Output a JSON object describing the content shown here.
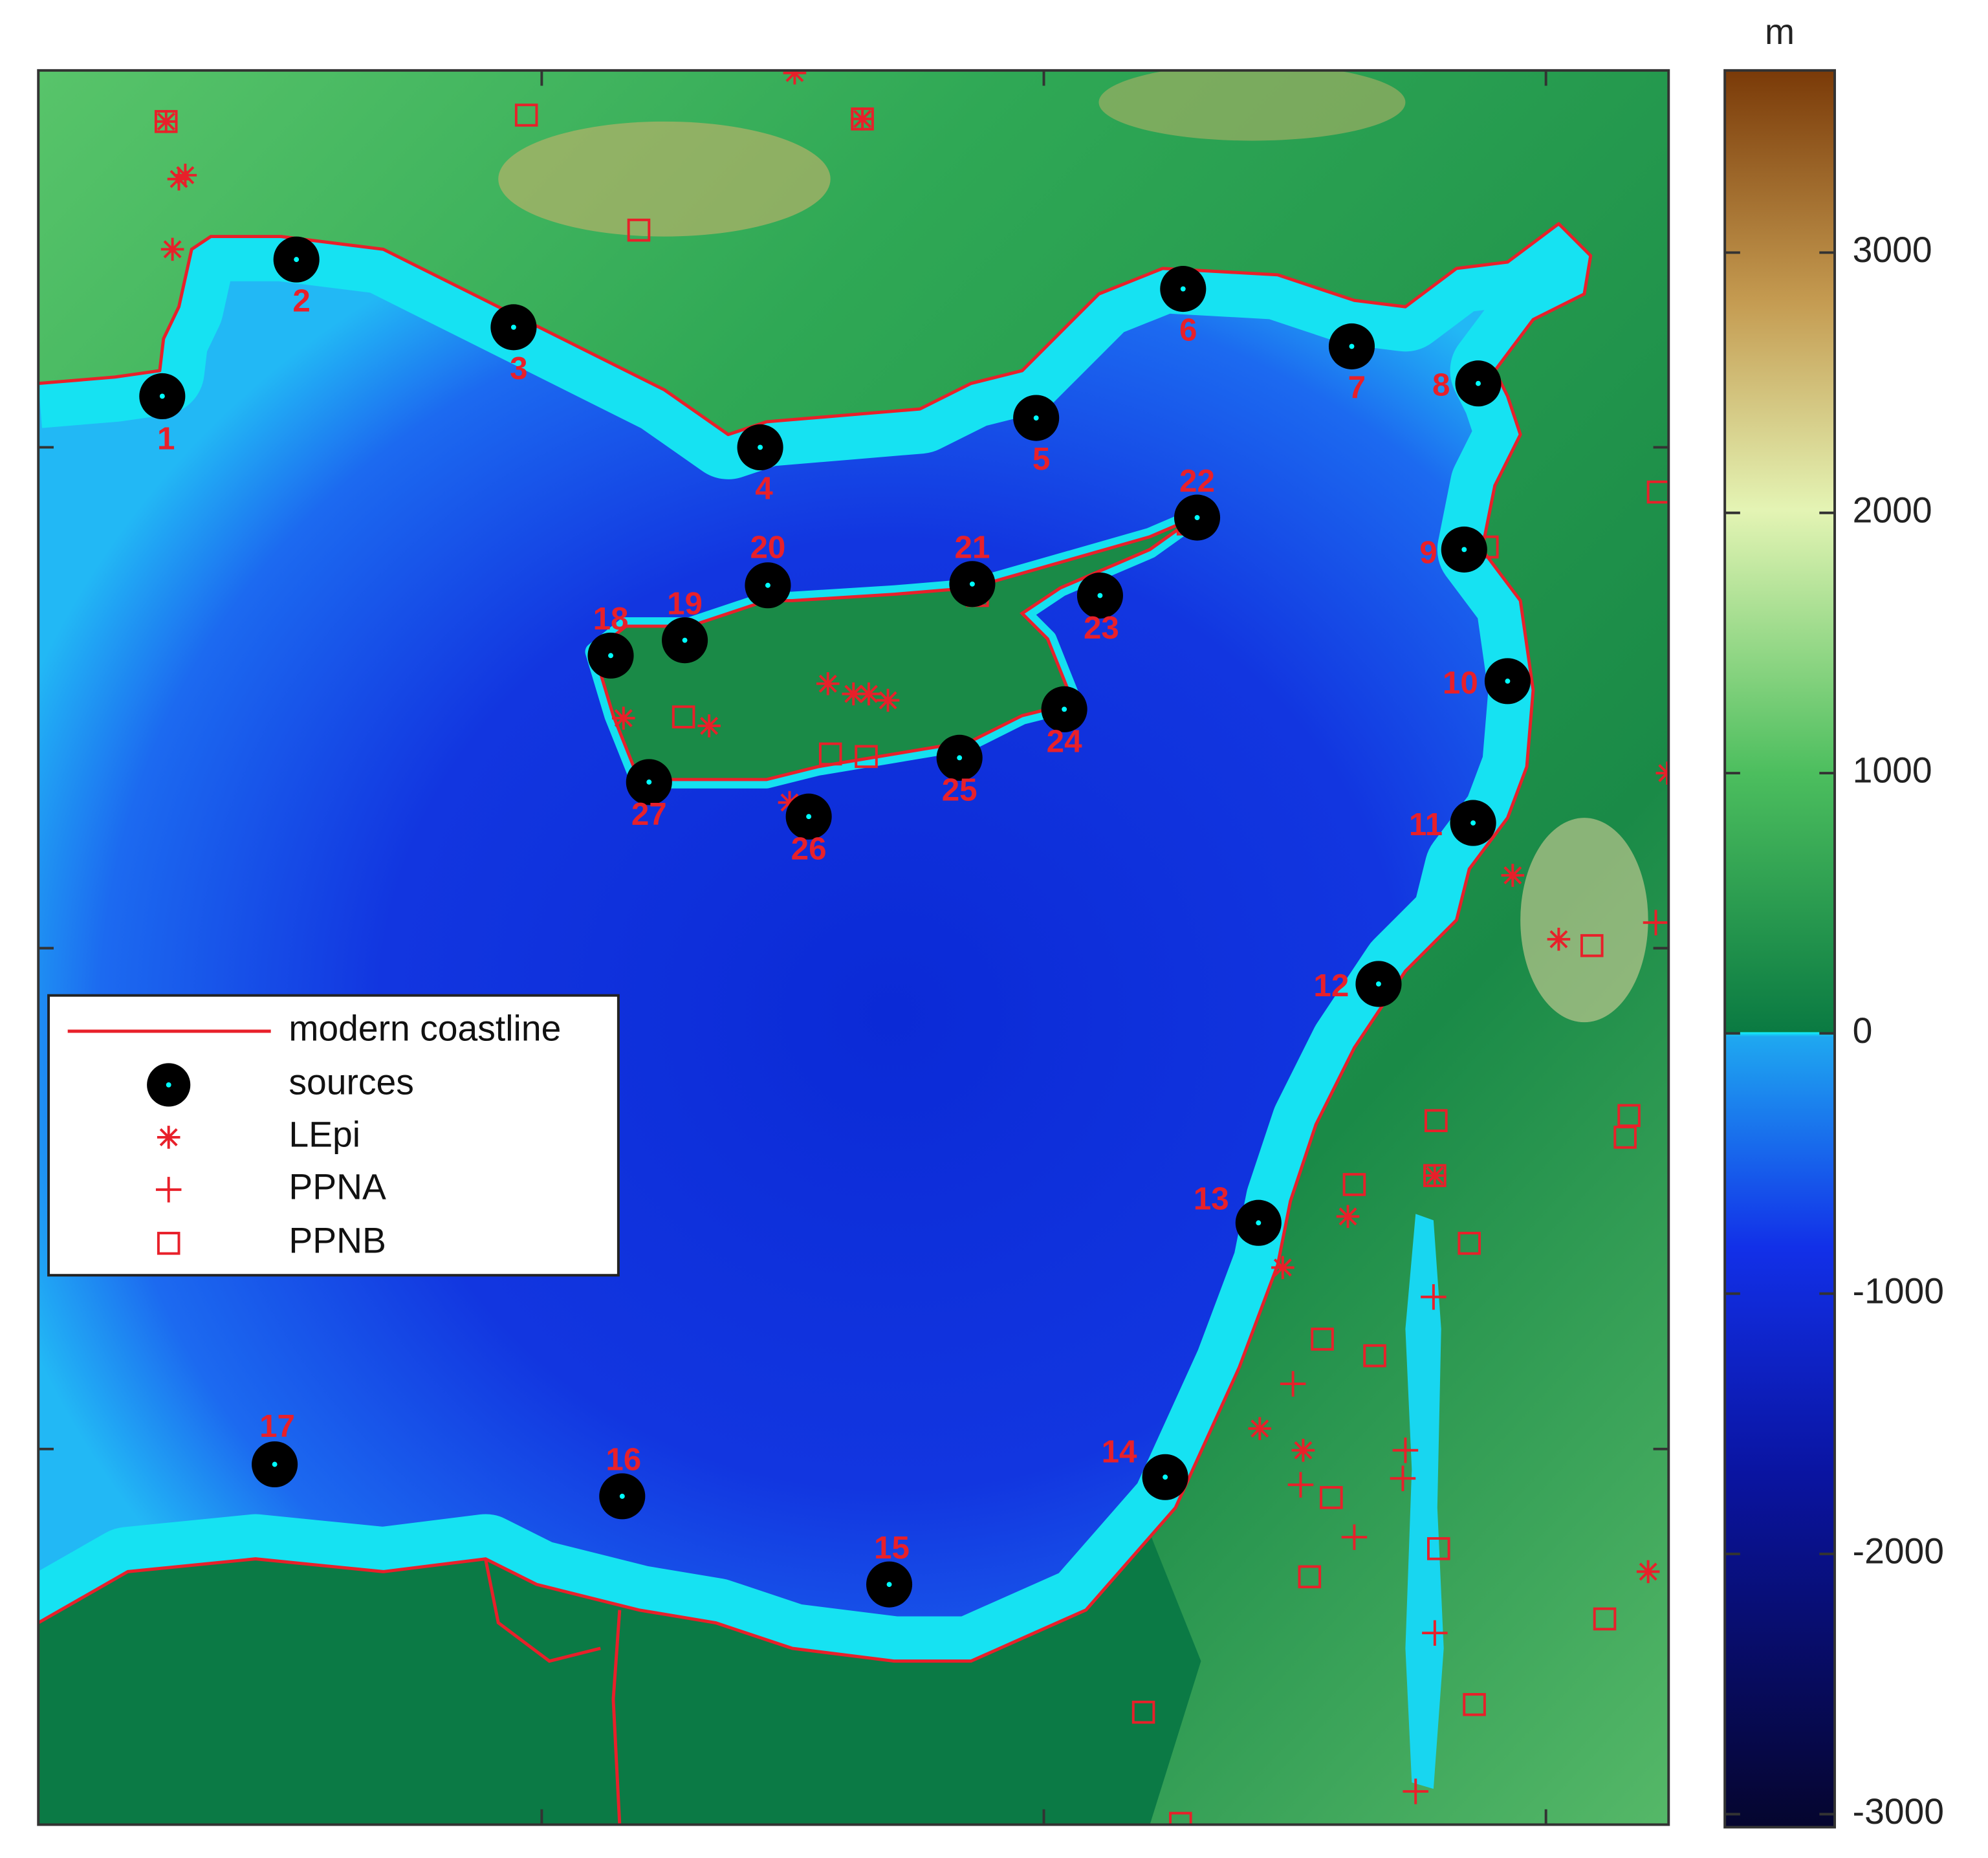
{
  "colorbar": {
    "title": "m",
    "lim": [
      -3050,
      3700
    ],
    "ticks": [
      -3000,
      -2000,
      -1000,
      0,
      1000,
      2000,
      3000
    ]
  },
  "legend": [
    "modern coastline",
    "sources",
    "LEpi",
    "PPNA",
    "PPNB"
  ],
  "sources": [
    "1",
    "2",
    "3",
    "4",
    "5",
    "6",
    "7",
    "8",
    "9",
    "10",
    "11",
    "12",
    "13",
    "14",
    "15",
    "16",
    "17",
    "18",
    "19",
    "20",
    "21",
    "22",
    "23",
    "24",
    "25",
    "26",
    "27"
  ]
}
